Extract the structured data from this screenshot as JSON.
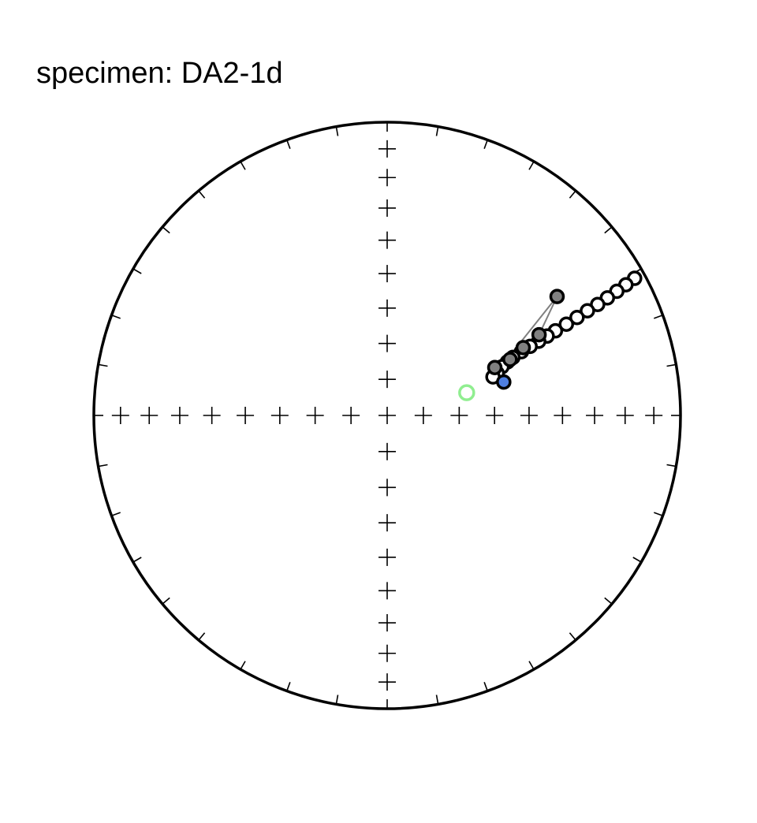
{
  "title": "specimen: DA2-1d",
  "colors": {
    "net": "#000000",
    "upper_fill": "#ffffff",
    "lower_fill": "#808080",
    "path_line": "#808080",
    "highlight_fill": "#4f7fe0",
    "mean_ring": "#90ee90"
  },
  "chart_data": {
    "type": "scatter",
    "projection": "equal-area stereonet",
    "title": "specimen: DA2-1d",
    "grid": "crosshair",
    "axis_range_deg": [
      0,
      90
    ],
    "tick_interval_deg": 10,
    "demag_steps": [
      {
        "dec": 61.0,
        "inc": -4.0,
        "hemisphere": "upper"
      },
      {
        "dec": 61.3,
        "inc": -8.0,
        "hemisphere": "upper"
      },
      {
        "dec": 61.6,
        "inc": -12.0,
        "hemisphere": "upper"
      },
      {
        "dec": 61.9,
        "inc": -16.0,
        "hemisphere": "upper"
      },
      {
        "dec": 62.2,
        "inc": -20.0,
        "hemisphere": "upper"
      },
      {
        "dec": 62.4,
        "inc": -24.0,
        "hemisphere": "upper"
      },
      {
        "dec": 62.7,
        "inc": -28.0,
        "hemisphere": "upper"
      },
      {
        "dec": 63.0,
        "inc": -32.0,
        "hemisphere": "upper"
      },
      {
        "dec": 63.3,
        "inc": -36.0,
        "hemisphere": "upper"
      },
      {
        "dec": 63.6,
        "inc": -39.0,
        "hemisphere": "upper"
      },
      {
        "dec": 63.9,
        "inc": -42.0,
        "hemisphere": "upper"
      },
      {
        "dec": 64.2,
        "inc": -45.0,
        "hemisphere": "upper"
      },
      {
        "dec": 64.6,
        "inc": -48.0,
        "hemisphere": "upper"
      },
      {
        "dec": 65.2,
        "inc": -51.0,
        "hemisphere": "upper"
      },
      {
        "dec": 66.0,
        "inc": -53.0,
        "hemisphere": "upper"
      },
      {
        "dec": 67.0,
        "inc": -55.0,
        "hemisphere": "upper"
      },
      {
        "dec": 69.0,
        "inc": -57.0,
        "hemisphere": "upper"
      },
      {
        "dec": 70.0,
        "inc": -58.5,
        "hemisphere": "upper"
      },
      {
        "dec": 55.0,
        "inc": 30.0,
        "hemisphere": "lower"
      },
      {
        "dec": 62.0,
        "inc": 41.0,
        "hemisphere": "lower"
      },
      {
        "dec": 63.5,
        "inc": 47.0,
        "hemisphere": "lower"
      },
      {
        "dec": 65.5,
        "inc": 52.0,
        "hemisphere": "lower"
      },
      {
        "dec": 66.0,
        "inc": 57.0,
        "hemisphere": "lower"
      },
      {
        "dec": 74.0,
        "inc": 56.0,
        "hemisphere": "lower",
        "highlight": true
      }
    ],
    "mean_direction": {
      "dec": 74.0,
      "inc": 67.0
    }
  }
}
